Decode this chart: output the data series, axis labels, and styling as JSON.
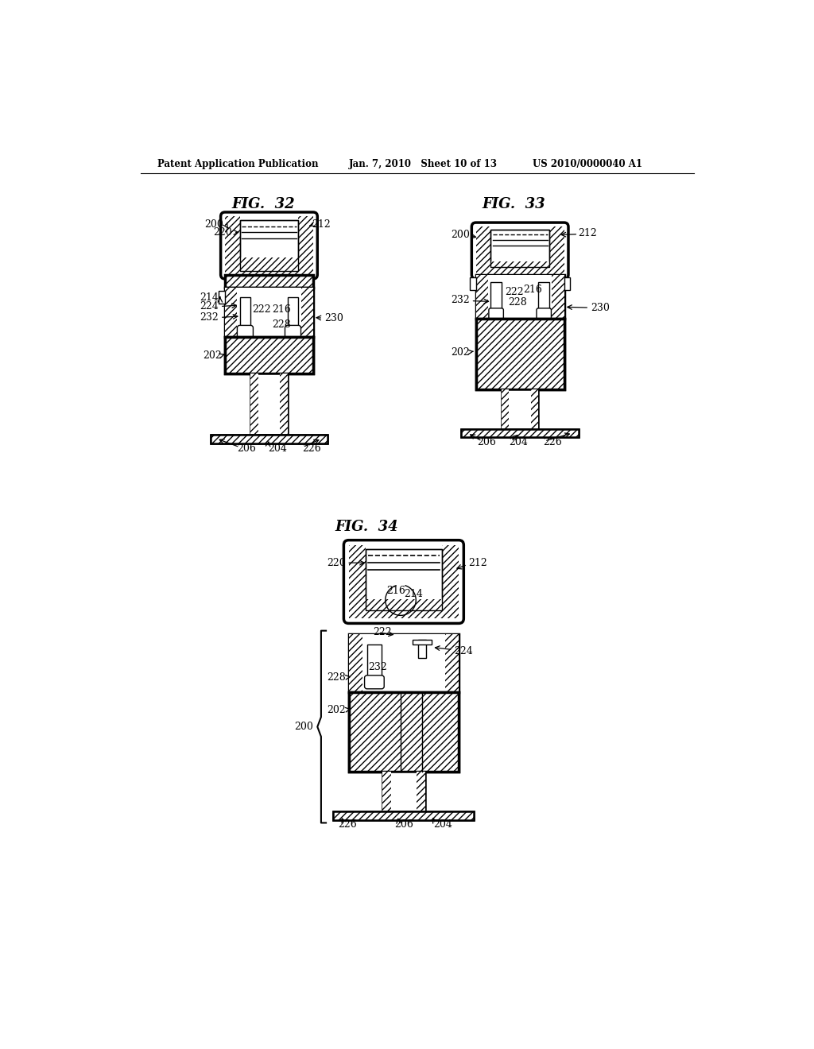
{
  "page_title_left": "Patent Application Publication",
  "page_title_center": "Jan. 7, 2010   Sheet 10 of 13",
  "page_title_right": "US 2010/0000040 A1",
  "fig32_title": "FIG.  32",
  "fig33_title": "FIG.  33",
  "fig34_title": "FIG.  34",
  "bg_color": "#ffffff",
  "line_color": "#000000",
  "text_color": "#000000"
}
